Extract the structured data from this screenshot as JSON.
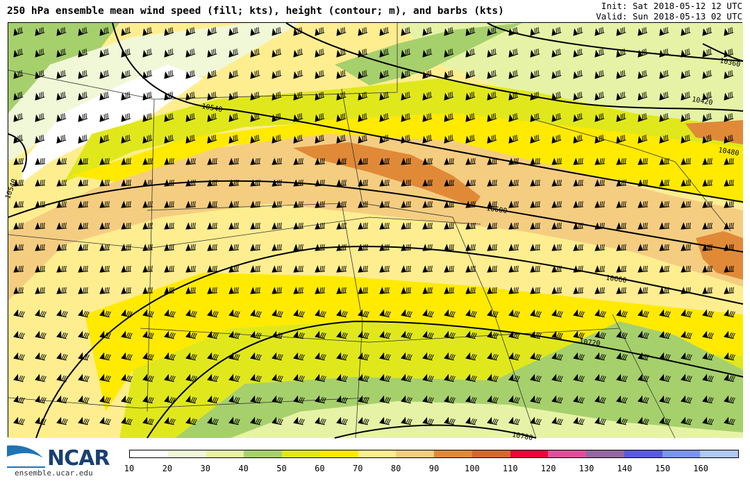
{
  "header": {
    "title": "250 hPa ensemble mean wind speed (fill; kts), height (contour; m), and barbs (kts)",
    "init": "Init: Sat 2018-05-12 12 UTC",
    "valid": "Valid: Sun 2018-05-13 02 UTC"
  },
  "map": {
    "contour_labels": [
      "10360",
      "10420",
      "10480",
      "10540",
      "10540",
      "10600",
      "10660",
      "10720",
      "10780"
    ],
    "fill_colors": {
      "10-20": "#ffffff",
      "20-30": "#f1f8d8",
      "30-40": "#e6f3a6",
      "40-50": "#a6d06c",
      "50-60": "#e0e81c",
      "60-70": "#ffea00",
      "70-80": "#ffee90",
      "80-90": "#f5cd80",
      "90-100": "#e08a38"
    }
  },
  "colorbar": {
    "ticks": [
      "10",
      "20",
      "30",
      "40",
      "50",
      "60",
      "70",
      "80",
      "90",
      "100",
      "110",
      "120",
      "130",
      "140",
      "150",
      "160"
    ],
    "colors": [
      "#ffffff",
      "#f1f8d8",
      "#e6f3a6",
      "#a6d06c",
      "#e0e81c",
      "#ffea00",
      "#ffee90",
      "#f5cd80",
      "#e08a38",
      "#d4692f",
      "#e8083a",
      "#e0509a",
      "#9468a0",
      "#5a5ae0",
      "#7a95ee",
      "#b0c8f5"
    ]
  },
  "logo": {
    "name": "NCAR",
    "url": "ensemble.ucar.edu"
  }
}
